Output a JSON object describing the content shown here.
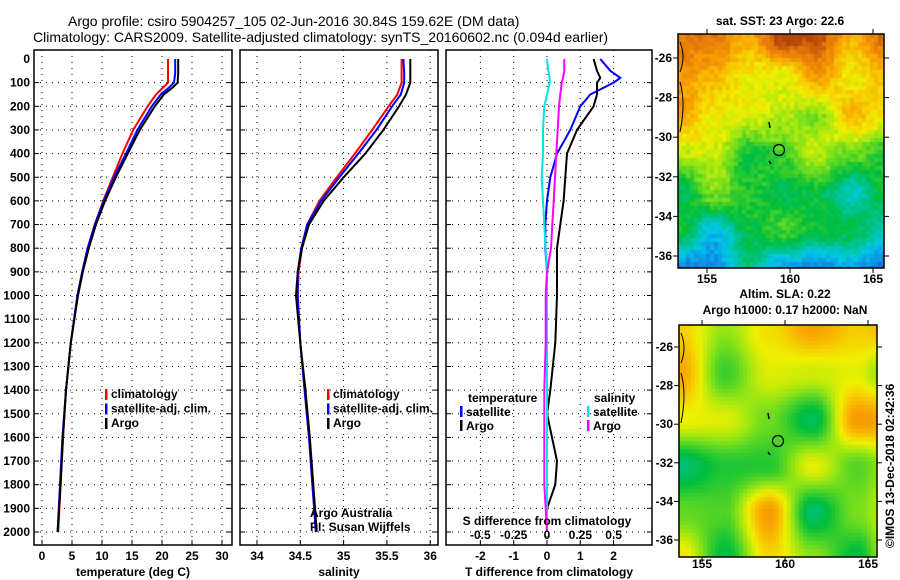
{
  "header": {
    "line1": "Argo profile: csiro 5904257_105 02-Jun-2016 30.84S 159.62E (DM data)",
    "line2": "Climatology: CARS2009. Satellite-adjusted climatology: synTS_20160602.nc (0.094d earlier)"
  },
  "colors": {
    "climatology": "#ff0000",
    "satellite": "#0000ff",
    "argo": "#000000",
    "sal_satellite": "#00e5e5",
    "sal_argo": "#ff00ff"
  },
  "chart_data": [
    {
      "type": "line",
      "name": "temperature",
      "xlabel": "temperature (deg C)",
      "ylabel": "",
      "xlim": [
        -1.3,
        31.7
      ],
      "ylim": [
        2055,
        -38
      ],
      "xticks": [
        "0",
        "5",
        "10",
        "15",
        "20",
        "25",
        "30"
      ],
      "xtick_values": [
        0,
        5,
        10,
        15,
        20,
        25,
        30
      ],
      "yticks": [
        "0",
        "100",
        "200",
        "300",
        "400",
        "500",
        "600",
        "700",
        "800",
        "900",
        "1000",
        "1100",
        "1200",
        "1300",
        "1400",
        "1500",
        "1600",
        "1700",
        "1800",
        "1900",
        "2000"
      ],
      "legend": [
        "climatology",
        "satellite-adj. clim.",
        "Argo"
      ],
      "depth": [
        0,
        60,
        100,
        120,
        150,
        200,
        300,
        400,
        500,
        600,
        700,
        800,
        900,
        1000,
        1200,
        1400,
        1600,
        1800,
        2000
      ],
      "series": [
        {
          "name": "climatology",
          "values": [
            21.0,
            21.0,
            21.0,
            20.2,
            19.0,
            17.6,
            15.2,
            13.4,
            11.8,
            10.2,
            8.8,
            7.6,
            6.7,
            5.9,
            4.8,
            4.0,
            3.5,
            3.1,
            2.7
          ]
        },
        {
          "name": "satellite-adj. clim.",
          "values": [
            22.2,
            22.2,
            22.0,
            21.2,
            19.8,
            18.3,
            15.9,
            14.0,
            12.0,
            10.3,
            8.8,
            7.6,
            6.7,
            5.9,
            4.8,
            4.0,
            3.4,
            3.0,
            2.6
          ]
        },
        {
          "name": "Argo",
          "values": [
            22.7,
            22.7,
            22.6,
            21.8,
            20.3,
            18.8,
            16.3,
            14.3,
            12.3,
            10.5,
            9.0,
            7.8,
            6.8,
            6.0,
            4.8,
            4.0,
            3.5,
            3.1,
            2.6
          ]
        }
      ]
    },
    {
      "type": "line",
      "name": "salinity",
      "xlabel": "salinity",
      "ylabel": "",
      "xlim": [
        33.8,
        36.09
      ],
      "ylim": [
        2055,
        -38
      ],
      "xticks": [
        "34",
        "34.5",
        "35",
        "35.5",
        "36"
      ],
      "xtick_values": [
        34,
        34.5,
        35,
        35.5,
        36
      ],
      "legend": [
        "climatology",
        "satellite-adj. clim.",
        "Argo"
      ],
      "annotations": [
        "Argo Australia",
        "PI: Susan Wijffels"
      ],
      "depth": [
        0,
        60,
        100,
        150,
        200,
        300,
        400,
        500,
        600,
        700,
        800,
        900,
        1000,
        1200,
        1400,
        1600,
        1800,
        2000
      ],
      "series": [
        {
          "name": "climatology",
          "values": [
            35.67,
            35.67,
            35.67,
            35.62,
            35.52,
            35.33,
            35.13,
            34.92,
            34.72,
            34.58,
            34.52,
            34.48,
            34.47,
            34.5,
            34.55,
            34.6,
            34.64,
            34.68
          ]
        },
        {
          "name": "satellite-adj. clim.",
          "values": [
            35.69,
            35.7,
            35.7,
            35.66,
            35.56,
            35.38,
            35.17,
            34.95,
            34.74,
            34.58,
            34.51,
            34.47,
            34.47,
            34.5,
            34.55,
            34.6,
            34.64,
            34.68
          ]
        },
        {
          "name": "Argo",
          "values": [
            35.77,
            35.77,
            35.77,
            35.72,
            35.64,
            35.46,
            35.25,
            35.0,
            34.77,
            34.6,
            34.52,
            34.47,
            34.45,
            34.5,
            34.56,
            34.61,
            34.65,
            34.69
          ]
        }
      ]
    },
    {
      "type": "line",
      "name": "differences",
      "xlabel": "T difference from climatology",
      "x2label": "S difference from climatology",
      "xlim": [
        -3.03,
        3.15
      ],
      "ylim": [
        2055,
        -38
      ],
      "xticks": [
        "-2",
        "-1",
        "0",
        "1",
        "2"
      ],
      "xtick_values": [
        -2,
        -1,
        0,
        1,
        2
      ],
      "x2ticks": [
        "-0.5",
        "-0.25",
        "0",
        "0.25",
        "0.5"
      ],
      "x2tick_values": [
        -0.5,
        -0.25,
        0,
        0.25,
        0.5
      ],
      "legend": {
        "temperature_title": "temperature",
        "salinity_title": "salinity",
        "satellite": "satellite",
        "argo": "Argo"
      },
      "depth": [
        0,
        50,
        80,
        100,
        150,
        200,
        300,
        400,
        500,
        600,
        700,
        800,
        900,
        1000,
        1200,
        1400,
        1500,
        1600,
        1700,
        1800,
        1900,
        2000
      ],
      "series": [
        {
          "name": "T satellite",
          "axis": "T",
          "values": [
            1.6,
            1.9,
            2.2,
            2.0,
            1.3,
            1.0,
            0.7,
            0.3,
            0.1,
            0.0,
            -0.05,
            -0.05,
            0,
            0,
            0,
            0,
            0,
            0,
            0,
            0,
            0,
            0
          ]
        },
        {
          "name": "T Argo",
          "axis": "T",
          "values": [
            1.4,
            1.5,
            1.6,
            1.5,
            1.5,
            1.4,
            0.9,
            0.6,
            0.55,
            0.5,
            0.4,
            0.3,
            0.3,
            0.3,
            0.25,
            0.1,
            0.0,
            0.15,
            0.3,
            0.25,
            0.0,
            0.0
          ]
        },
        {
          "name": "S satellite",
          "axis": "S",
          "values": [
            0.0,
            0.01,
            0.02,
            0.02,
            0.0,
            -0.02,
            -0.03,
            -0.03,
            -0.04,
            -0.03,
            -0.02,
            -0.01,
            0,
            0,
            0,
            0,
            0,
            0,
            0,
            0,
            0,
            0
          ]
        },
        {
          "name": "S Argo",
          "axis": "S",
          "values": [
            0.13,
            0.13,
            0.12,
            0.11,
            0.1,
            0.09,
            0.08,
            0.07,
            0.06,
            0.05,
            0.04,
            0.03,
            0.0,
            -0.01,
            -0.01,
            -0.02,
            -0.02,
            -0.02,
            -0.02,
            -0.02,
            -0.01,
            0.0
          ]
        }
      ]
    }
  ],
  "maps": [
    {
      "title": "sat. SST: 23 Argo: 22.6",
      "lat_ticks": [
        "-26",
        "-28",
        "-30",
        "-32",
        "-34",
        "-36"
      ],
      "lon_ticks": [
        "155",
        "160",
        "165"
      ]
    },
    {
      "title1": "Altim. SLA: 0.22",
      "title2": "Argo h1000: 0.17 h2000: NaN",
      "lat_ticks": [
        "-26",
        "-28",
        "-30",
        "-32",
        "-34",
        "-36"
      ],
      "lon_ticks": [
        "155",
        "160",
        "165"
      ]
    }
  ],
  "watermark": "©IMOS 13-Dec-2018 02:42:36"
}
